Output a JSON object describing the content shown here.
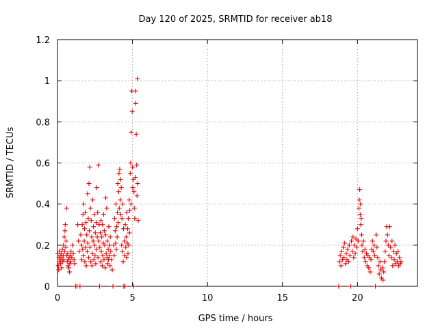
{
  "chart_data": {
    "type": "scatter",
    "title": "Day 120 of 2025, SRMTID for receiver ab18",
    "xlabel": "GPS time / hours",
    "ylabel": "SRMTID / TECUs",
    "xlim": [
      0,
      24
    ],
    "ylim": [
      0,
      1.2
    ],
    "x_ticks": [
      "0",
      "5",
      "10",
      "15",
      "20"
    ],
    "x_tick_values": [
      0,
      5,
      10,
      15,
      20
    ],
    "y_ticks": [
      "0",
      "0.2",
      "0.4",
      "0.6",
      "0.8",
      "1",
      "1.2"
    ],
    "y_tick_values": [
      0,
      0.2,
      0.4,
      0.6,
      0.8,
      1.0,
      1.2
    ],
    "grid": true,
    "marker": "+",
    "color": "#e00000",
    "series": [
      {
        "name": "SRMTID",
        "points": [
          [
            0.02,
            0.16
          ],
          [
            0.05,
            0.1
          ],
          [
            0.08,
            0.08
          ],
          [
            0.1,
            0.14
          ],
          [
            0.12,
            0.17
          ],
          [
            0.15,
            0.12
          ],
          [
            0.18,
            0.15
          ],
          [
            0.2,
            0.11
          ],
          [
            0.22,
            0.13
          ],
          [
            0.25,
            0.16
          ],
          [
            0.28,
            0.09
          ],
          [
            0.3,
            0.14
          ],
          [
            0.32,
            0.18
          ],
          [
            0.35,
            0.12
          ],
          [
            0.38,
            0.15
          ],
          [
            0.4,
            0.2
          ],
          [
            0.42,
            0.13
          ],
          [
            0.45,
            0.24
          ],
          [
            0.47,
            0.17
          ],
          [
            0.5,
            0.27
          ],
          [
            0.52,
            0.3
          ],
          [
            0.55,
            0.19
          ],
          [
            0.57,
            0.22
          ],
          [
            0.6,
            0.38
          ],
          [
            0.62,
            0.15
          ],
          [
            0.65,
            0.12
          ],
          [
            0.68,
            0.16
          ],
          [
            0.7,
            0.1
          ],
          [
            0.72,
            0.13
          ],
          [
            0.75,
            0.09
          ],
          [
            0.78,
            0.14
          ],
          [
            0.8,
            0.07
          ],
          [
            0.82,
            0.11
          ],
          [
            0.85,
            0.15
          ],
          [
            0.88,
            0.12
          ],
          [
            0.9,
            0.17
          ],
          [
            0.95,
            0.14
          ],
          [
            1.0,
            0.2
          ],
          [
            1.05,
            0.16
          ],
          [
            1.1,
            0.13
          ],
          [
            1.15,
            0.11
          ],
          [
            1.2,
            0.0
          ],
          [
            1.3,
            0.0
          ],
          [
            1.35,
            0.3
          ],
          [
            1.4,
            0.22
          ],
          [
            1.45,
            0.17
          ],
          [
            1.5,
            0.0
          ],
          [
            1.55,
            0.25
          ],
          [
            1.6,
            0.2
          ],
          [
            1.62,
            0.13
          ],
          [
            1.65,
            0.3
          ],
          [
            1.68,
            0.18
          ],
          [
            1.7,
            0.35
          ],
          [
            1.72,
            0.15
          ],
          [
            1.75,
            0.4
          ],
          [
            1.78,
            0.22
          ],
          [
            1.8,
            0.28
          ],
          [
            1.82,
            0.12
          ],
          [
            1.85,
            0.36
          ],
          [
            1.88,
            0.19
          ],
          [
            1.9,
            0.31
          ],
          [
            1.92,
            0.1
          ],
          [
            1.95,
            0.25
          ],
          [
            1.98,
            0.17
          ],
          [
            2.0,
            0.45
          ],
          [
            2.02,
            0.21
          ],
          [
            2.05,
            0.33
          ],
          [
            2.08,
            0.14
          ],
          [
            2.1,
            0.5
          ],
          [
            2.12,
            0.27
          ],
          [
            2.15,
            0.58
          ],
          [
            2.17,
            0.19
          ],
          [
            2.2,
            0.38
          ],
          [
            2.22,
            0.12
          ],
          [
            2.25,
            0.32
          ],
          [
            2.28,
            0.24
          ],
          [
            2.3,
            0.1
          ],
          [
            2.32,
            0.16
          ],
          [
            2.35,
            0.42
          ],
          [
            2.38,
            0.22
          ],
          [
            2.4,
            0.29
          ],
          [
            2.42,
            0.13
          ],
          [
            2.45,
            0.35
          ],
          [
            2.48,
            0.2
          ],
          [
            2.5,
            0.15
          ],
          [
            2.52,
            0.26
          ],
          [
            2.55,
            0.11
          ],
          [
            2.58,
            0.31
          ],
          [
            2.6,
            0.18
          ],
          [
            2.62,
            0.48
          ],
          [
            2.65,
            0.24
          ],
          [
            2.68,
            0.36
          ],
          [
            2.7,
            0.14
          ],
          [
            2.72,
            0.59
          ],
          [
            2.75,
            0.22
          ],
          [
            2.78,
            0.3
          ],
          [
            2.8,
            0.0
          ],
          [
            2.82,
            0.19
          ],
          [
            2.85,
            0.26
          ],
          [
            2.88,
            0.12
          ],
          [
            2.9,
            0.32
          ],
          [
            2.92,
            0.17
          ],
          [
            2.95,
            0.24
          ],
          [
            2.98,
            0.1
          ],
          [
            3.0,
            0.3
          ],
          [
            3.02,
            0.15
          ],
          [
            3.05,
            0.21
          ],
          [
            3.08,
            0.35
          ],
          [
            3.1,
            0.13
          ],
          [
            3.12,
            0.27
          ],
          [
            3.15,
            0.2
          ],
          [
            3.18,
            0.09
          ],
          [
            3.2,
            0.25
          ],
          [
            3.22,
            0.43
          ],
          [
            3.25,
            0.16
          ],
          [
            3.28,
            0.38
          ],
          [
            3.3,
            0.14
          ],
          [
            3.32,
            0.22
          ],
          [
            3.35,
            0.11
          ],
          [
            3.38,
            0.18
          ],
          [
            3.4,
            0.13
          ],
          [
            3.42,
            0.29
          ],
          [
            3.45,
            0.2
          ],
          [
            3.48,
            0.15
          ],
          [
            3.5,
            0.1
          ],
          [
            3.52,
            0.24
          ],
          [
            3.55,
            0.17
          ],
          [
            3.6,
            0.13
          ],
          [
            3.65,
            0.08
          ],
          [
            3.7,
            0.0
          ],
          [
            3.75,
            0.2
          ],
          [
            3.78,
            0.15
          ],
          [
            3.8,
            0.33
          ],
          [
            3.85,
            0.27
          ],
          [
            3.88,
            0.21
          ],
          [
            3.9,
            0.4
          ],
          [
            3.92,
            0.18
          ],
          [
            3.95,
            0.29
          ],
          [
            3.98,
            0.24
          ],
          [
            4.0,
            0.36
          ],
          [
            4.02,
            0.5
          ],
          [
            4.05,
            0.31
          ],
          [
            4.08,
            0.46
          ],
          [
            4.1,
            0.55
          ],
          [
            4.12,
            0.38
          ],
          [
            4.15,
            0.57
          ],
          [
            4.18,
            0.42
          ],
          [
            4.2,
            0.52
          ],
          [
            4.22,
            0.35
          ],
          [
            4.25,
            0.48
          ],
          [
            4.28,
            0.2
          ],
          [
            4.3,
            0.33
          ],
          [
            4.32,
            0.17
          ],
          [
            4.35,
            0.4
          ],
          [
            4.38,
            0.12
          ],
          [
            4.4,
            0.28
          ],
          [
            4.42,
            0.0
          ],
          [
            4.45,
            0.22
          ],
          [
            4.48,
            0.15
          ],
          [
            4.5,
            0.0
          ],
          [
            4.52,
            0.3
          ],
          [
            4.55,
            0.19
          ],
          [
            4.58,
            0.24
          ],
          [
            4.6,
            0.14
          ],
          [
            4.62,
            0.36
          ],
          [
            4.65,
            0.21
          ],
          [
            4.68,
            0.28
          ],
          [
            4.7,
            0.16
          ],
          [
            4.72,
            0.33
          ],
          [
            4.75,
            0.2
          ],
          [
            4.78,
            0.42
          ],
          [
            4.8,
            0.26
          ],
          [
            4.82,
            0.37
          ],
          [
            4.85,
            0.55
          ],
          [
            4.88,
            0.6
          ],
          [
            4.9,
            0.4
          ],
          [
            4.92,
            0.75
          ],
          [
            4.95,
            0.95
          ],
          [
            4.98,
            0.85
          ],
          [
            5.0,
            0.58
          ],
          [
            5.02,
            0.48
          ],
          [
            5.05,
            0.52
          ],
          [
            5.08,
            0.0
          ],
          [
            5.1,
            0.46
          ],
          [
            5.12,
            0.38
          ],
          [
            5.15,
            0.33
          ],
          [
            5.18,
            0.53
          ],
          [
            5.2,
            0.95
          ],
          [
            5.22,
            0.89
          ],
          [
            5.25,
            0.74
          ],
          [
            5.28,
            0.59
          ],
          [
            5.3,
            0.44
          ],
          [
            5.32,
            1.01
          ],
          [
            5.35,
            0.5
          ],
          [
            5.38,
            0.32
          ],
          [
            18.75,
            0.0
          ],
          [
            18.8,
            0.12
          ],
          [
            18.85,
            0.15
          ],
          [
            18.9,
            0.1
          ],
          [
            18.95,
            0.17
          ],
          [
            19.0,
            0.13
          ],
          [
            19.05,
            0.19
          ],
          [
            19.1,
            0.14
          ],
          [
            19.15,
            0.21
          ],
          [
            19.2,
            0.11
          ],
          [
            19.25,
            0.16
          ],
          [
            19.3,
            0.13
          ],
          [
            19.35,
            0.18
          ],
          [
            19.4,
            0.12
          ],
          [
            19.45,
            0.2
          ],
          [
            19.5,
            0.15
          ],
          [
            19.55,
            0.0
          ],
          [
            19.6,
            0.22
          ],
          [
            19.65,
            0.17
          ],
          [
            19.7,
            0.24
          ],
          [
            19.75,
            0.14
          ],
          [
            19.8,
            0.2
          ],
          [
            19.85,
            0.16
          ],
          [
            19.9,
            0.23
          ],
          [
            19.95,
            0.19
          ],
          [
            20.0,
            0.28
          ],
          [
            20.05,
            0.22
          ],
          [
            20.1,
            0.38
          ],
          [
            20.12,
            0.42
          ],
          [
            20.15,
            0.47
          ],
          [
            20.18,
            0.35
          ],
          [
            20.2,
            0.4
          ],
          [
            20.22,
            0.3
          ],
          [
            20.25,
            0.33
          ],
          [
            20.28,
            0.25
          ],
          [
            20.3,
            0.2
          ],
          [
            20.35,
            0.17
          ],
          [
            20.4,
            0.22
          ],
          [
            20.45,
            0.14
          ],
          [
            20.5,
            0.18
          ],
          [
            20.55,
            0.12
          ],
          [
            20.6,
            0.16
          ],
          [
            20.65,
            0.1
          ],
          [
            20.7,
            0.15
          ],
          [
            20.75,
            0.09
          ],
          [
            20.8,
            0.14
          ],
          [
            20.85,
            0.07
          ],
          [
            20.9,
            0.13
          ],
          [
            20.95,
            0.18
          ],
          [
            21.0,
            0.22
          ],
          [
            21.05,
            0.17
          ],
          [
            21.1,
            0.2
          ],
          [
            21.15,
            0.15
          ],
          [
            21.2,
            0.0
          ],
          [
            21.25,
            0.25
          ],
          [
            21.3,
            0.19
          ],
          [
            21.35,
            0.14
          ],
          [
            21.4,
            0.1
          ],
          [
            21.45,
            0.06
          ],
          [
            21.5,
            0.12
          ],
          [
            21.55,
            0.08
          ],
          [
            21.6,
            0.04
          ],
          [
            21.65,
            0.09
          ],
          [
            21.7,
            0.03
          ],
          [
            21.75,
            0.07
          ],
          [
            21.8,
            0.12
          ],
          [
            21.85,
            0.17
          ],
          [
            21.9,
            0.22
          ],
          [
            21.95,
            0.29
          ],
          [
            22.0,
            0.25
          ],
          [
            22.05,
            0.2
          ],
          [
            22.1,
            0.15
          ],
          [
            22.15,
            0.29
          ],
          [
            22.2,
            0.19
          ],
          [
            22.25,
            0.14
          ],
          [
            22.3,
            0.22
          ],
          [
            22.35,
            0.1
          ],
          [
            22.4,
            0.17
          ],
          [
            22.45,
            0.13
          ],
          [
            22.5,
            0.2
          ],
          [
            22.55,
            0.11
          ],
          [
            22.6,
            0.16
          ],
          [
            22.65,
            0.12
          ],
          [
            22.7,
            0.17
          ],
          [
            22.75,
            0.1
          ],
          [
            22.8,
            0.14
          ],
          [
            22.85,
            0.11
          ],
          [
            22.9,
            0.12
          ]
        ]
      }
    ]
  }
}
